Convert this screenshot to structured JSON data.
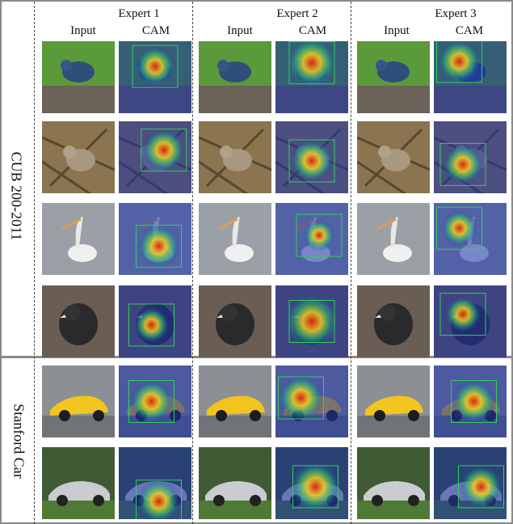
{
  "experts": [
    "Expert 1",
    "Expert 2",
    "Expert 3"
  ],
  "column_labels": {
    "input": "Input",
    "cam": "CAM"
  },
  "datasets": [
    "CUB 200-2011",
    "Stanford Car"
  ],
  "rows": [
    {
      "dataset": "CUB 200-2011",
      "subject": "blue bird on wooden rail",
      "bg": "#5a9a3a"
    },
    {
      "dataset": "CUB 200-2011",
      "subject": "sparrow among branches",
      "bg": "#8a7550"
    },
    {
      "dataset": "CUB 200-2011",
      "subject": "white pelican on water",
      "bg": "#9aa0a6"
    },
    {
      "dataset": "CUB 200-2011",
      "subject": "dark junco on ground",
      "bg": "#6a5e54"
    },
    {
      "dataset": "Stanford Car",
      "subject": "yellow sports car",
      "bg": "#8c8f94"
    },
    {
      "dataset": "Stanford Car",
      "subject": "silver convertible",
      "bg": "#3f5a34"
    }
  ],
  "icons": {
    "cam": "heatmap-image",
    "input": "photo-image"
  }
}
